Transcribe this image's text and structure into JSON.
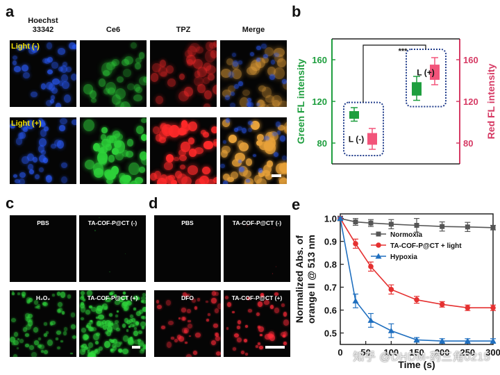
{
  "panels": {
    "a": {
      "label": "a",
      "columns": [
        "Hoechst\n33342",
        "Ce6",
        "TPZ",
        "Merge"
      ],
      "rows": [
        "Light (-)",
        "Light (+)"
      ],
      "colors": [
        "#2a5cff",
        "#2ed23a",
        "#ff2a2a",
        "#e8a23a"
      ]
    },
    "b": {
      "label": "b"
    },
    "c": {
      "label": "c",
      "labels": [
        "PBS",
        "TA-COF-P@CT (-)",
        "H₂O₂",
        "TA-COF-P@CT (+)"
      ]
    },
    "d": {
      "label": "d",
      "labels": [
        "PBS",
        "TA-COF-P@CT (-)",
        "DFO",
        "TA-COF-P@CT (+)"
      ]
    },
    "e": {
      "label": "e"
    }
  },
  "chart_data": [
    {
      "type": "bar",
      "panel": "b",
      "categories": [
        "L (-)",
        "L (+)"
      ],
      "series": [
        {
          "name": "Green FL intensity",
          "color": "#1e9e3e",
          "values": [
            107,
            132
          ],
          "low": [
            101,
            121
          ],
          "high": [
            114,
            144
          ]
        },
        {
          "name": "Red FL intensity",
          "color": "#f2547a",
          "values": [
            84,
            148
          ],
          "low": [
            74,
            136
          ],
          "high": [
            94,
            162
          ]
        }
      ],
      "ylabel_left": "Green FL intensity",
      "ylabel_right": "Red FL intensity",
      "ylim": [
        60,
        180
      ],
      "yticks": [
        80,
        120,
        160
      ],
      "annotation": "***",
      "box_labels": [
        "L (-)",
        "L (+)"
      ],
      "colors": {
        "green_axis": "#1e9e3e",
        "red_axis": "#d63a64",
        "box": "#1e3a8a"
      }
    },
    {
      "type": "line",
      "panel": "e",
      "x": [
        0,
        30,
        60,
        100,
        150,
        200,
        250,
        300
      ],
      "series": [
        {
          "name": "Normoxia",
          "color": "#555555",
          "marker": "square",
          "values": [
            1.0,
            0.985,
            0.98,
            0.975,
            0.97,
            0.965,
            0.963,
            0.96
          ],
          "err": [
            0.01,
            0.015,
            0.015,
            0.02,
            0.03,
            0.02,
            0.02,
            0.01
          ]
        },
        {
          "name": "TA-COF-P@CT + light",
          "color": "#e53030",
          "marker": "circle",
          "values": [
            1.0,
            0.89,
            0.79,
            0.69,
            0.645,
            0.625,
            0.61,
            0.61
          ],
          "err": [
            0.005,
            0.02,
            0.02,
            0.02,
            0.015,
            0.012,
            0.012,
            0.012
          ]
        },
        {
          "name": "Hypoxia",
          "color": "#1f6fbf",
          "marker": "triangle",
          "values": [
            1.0,
            0.64,
            0.555,
            0.51,
            0.47,
            0.465,
            0.465,
            0.465
          ],
          "err": [
            0.005,
            0.03,
            0.03,
            0.03,
            0.01,
            0.01,
            0.01,
            0.01
          ]
        }
      ],
      "xlabel": "Time (s)",
      "ylabel": "Normalized Abs. of\norange II @ 513 nm",
      "xlim": [
        0,
        300
      ],
      "ylim": [
        0.45,
        1.02
      ],
      "xticks": [
        0,
        50,
        100,
        150,
        200,
        250,
        300
      ],
      "yticks": [
        0.5,
        0.6,
        0.7,
        0.8,
        0.9,
        1.0
      ],
      "legend_position": "top-right"
    }
  ],
  "watermark": "知乎 @DHDM-药三角0215"
}
